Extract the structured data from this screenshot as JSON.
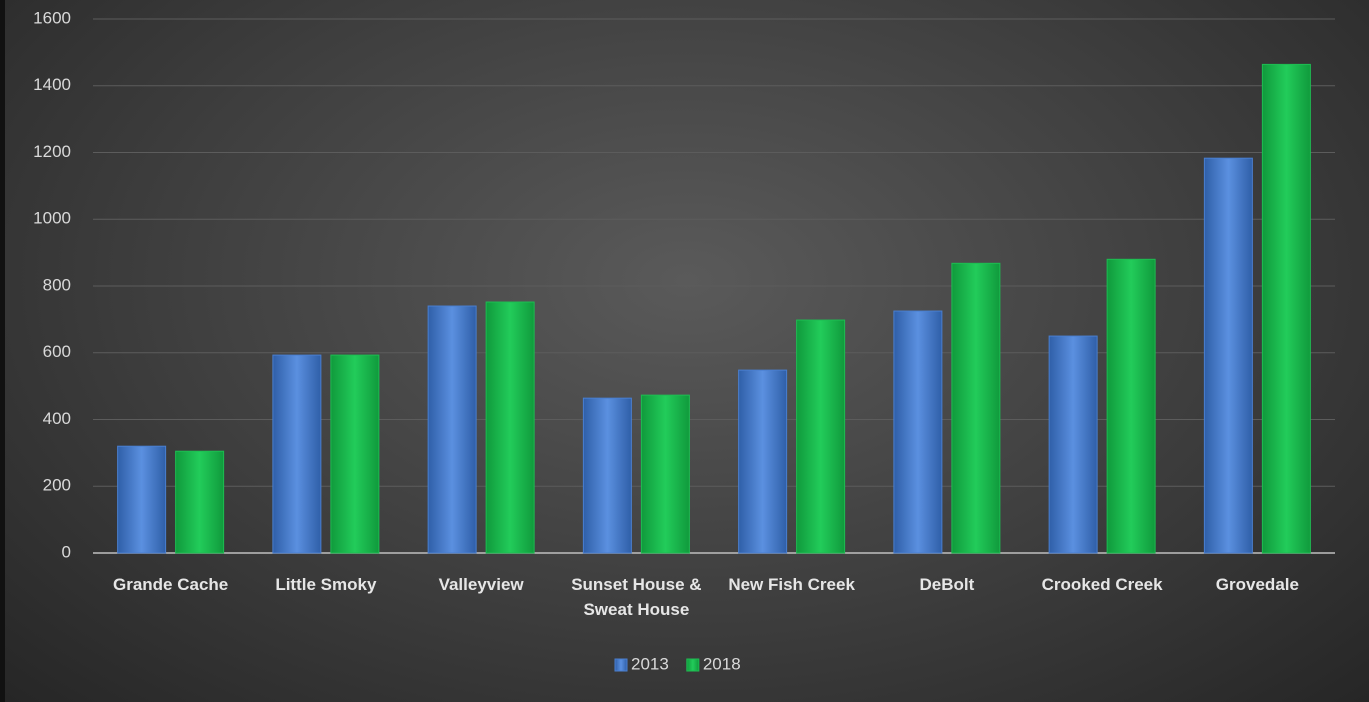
{
  "chart_data": {
    "type": "bar",
    "categories": [
      "Grande Cache",
      "Little Smoky",
      "Valleyview",
      "Sunset House & Sweat House",
      "New Fish Creek",
      "DeBolt",
      "Crooked Creek",
      "Grovedale"
    ],
    "series": [
      {
        "name": "2013",
        "color": "#4a7fd0",
        "values": [
          320,
          593,
          740,
          464,
          548,
          725,
          650,
          1183
        ]
      },
      {
        "name": "2018",
        "color": "#1ebd52",
        "values": [
          305,
          593,
          752,
          473,
          698,
          868,
          880,
          1464
        ]
      }
    ],
    "ylim": [
      0,
      1600
    ],
    "yticks": [
      0,
      200,
      400,
      600,
      800,
      1000,
      1200,
      1400,
      1600
    ],
    "grid": true,
    "legend": "bottom"
  }
}
